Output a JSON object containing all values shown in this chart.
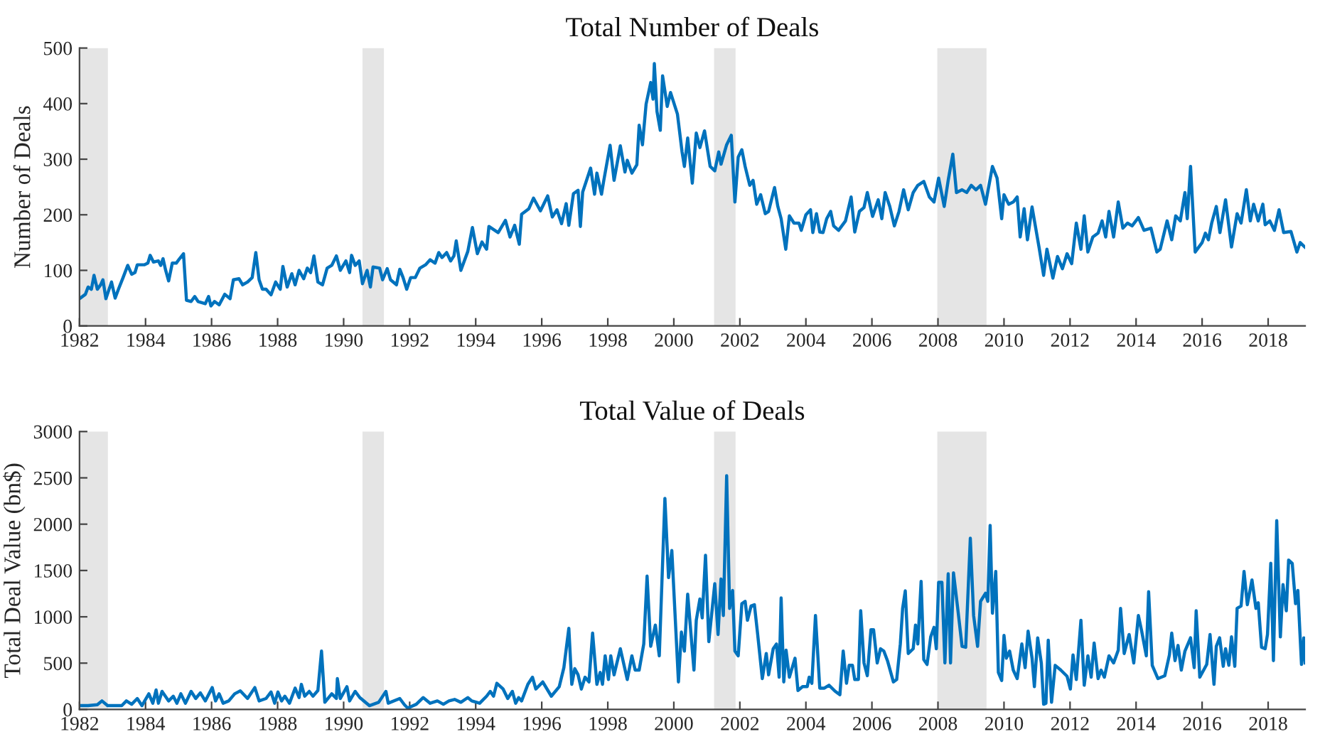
{
  "chart_data": [
    {
      "type": "line",
      "title": "Total Number of Deals",
      "ylabel": "Number of Deals",
      "xlim": [
        1982,
        2019.12
      ],
      "xticks": [
        1982,
        1984,
        1986,
        1988,
        1990,
        1992,
        1994,
        1996,
        1998,
        2000,
        2002,
        2004,
        2006,
        2008,
        2010,
        2012,
        2014,
        2016,
        2018
      ],
      "ylim": [
        0,
        500
      ],
      "yticks": [
        0,
        100,
        200,
        300,
        400,
        500
      ],
      "grid": false,
      "bands": [
        {
          "axis": "x",
          "from": 1982.0,
          "to": 1982.86,
          "color": "#e5e5e5"
        },
        {
          "axis": "x",
          "from": 1990.57,
          "to": 1991.22,
          "color": "#e5e5e5"
        },
        {
          "axis": "x",
          "from": 2001.22,
          "to": 2001.87,
          "color": "#e5e5e5"
        },
        {
          "axis": "x",
          "from": 2007.98,
          "to": 2009.47,
          "color": "#e5e5e5"
        }
      ],
      "series": [
        {
          "color": "#0072bd",
          "x": [
            1982.0,
            1982.18,
            1982.26,
            1982.36,
            1982.44,
            1982.54,
            1982.64,
            1982.71,
            1982.8,
            1982.97,
            1983.08,
            1983.18,
            1983.32,
            1983.46,
            1983.58,
            1983.68,
            1983.75,
            1983.96,
            1984.07,
            1984.14,
            1984.24,
            1984.39,
            1984.46,
            1984.53,
            1984.61,
            1984.7,
            1984.81,
            1984.93,
            1985.03,
            1985.15,
            1985.24,
            1985.38,
            1985.49,
            1985.59,
            1985.81,
            1985.91,
            1985.98,
            1986.09,
            1986.23,
            1986.4,
            1986.56,
            1986.66,
            1986.83,
            1986.94,
            1987.09,
            1987.23,
            1987.34,
            1987.44,
            1987.54,
            1987.65,
            1987.8,
            1987.94,
            1988.08,
            1988.16,
            1988.29,
            1988.43,
            1988.53,
            1988.65,
            1988.79,
            1988.9,
            1989.0,
            1989.1,
            1989.22,
            1989.36,
            1989.5,
            1989.64,
            1989.78,
            1989.9,
            1990.07,
            1990.18,
            1990.24,
            1990.35,
            1990.47,
            1990.57,
            1990.71,
            1990.81,
            1990.89,
            1991.09,
            1991.18,
            1991.32,
            1991.42,
            1991.6,
            1991.7,
            1991.8,
            1991.91,
            1992.03,
            1992.17,
            1992.31,
            1992.48,
            1992.62,
            1992.77,
            1992.88,
            1992.98,
            1993.12,
            1993.24,
            1993.34,
            1993.41,
            1993.55,
            1993.76,
            1993.9,
            1994.05,
            1994.19,
            1994.33,
            1994.4,
            1994.68,
            1994.9,
            1995.04,
            1995.18,
            1995.32,
            1995.39,
            1995.61,
            1995.75,
            1995.96,
            1996.18,
            1996.32,
            1996.46,
            1996.6,
            1996.74,
            1996.82,
            1996.96,
            1997.1,
            1997.17,
            1997.24,
            1997.48,
            1997.6,
            1997.67,
            1997.81,
            1997.88,
            1998.07,
            1998.19,
            1998.38,
            1998.52,
            1998.59,
            1998.73,
            1998.88,
            1998.95,
            1999.05,
            1999.16,
            1999.3,
            1999.37,
            1999.41,
            1999.49,
            1999.59,
            1999.66,
            1999.8,
            1999.9,
            2000.11,
            2000.25,
            2000.32,
            2000.42,
            2000.56,
            2000.68,
            2000.79,
            2000.93,
            2001.1,
            2001.24,
            2001.36,
            2001.43,
            2001.6,
            2001.74,
            2001.85,
            2001.95,
            2002.06,
            2002.16,
            2002.3,
            2002.4,
            2002.51,
            2002.63,
            2002.77,
            2002.87,
            2003.05,
            2003.15,
            2003.25,
            2003.39,
            2003.5,
            2003.64,
            2003.79,
            2003.86,
            2004.0,
            2004.14,
            2004.21,
            2004.32,
            2004.42,
            2004.52,
            2004.63,
            2004.75,
            2004.84,
            2004.99,
            2005.2,
            2005.37,
            2005.48,
            2005.62,
            2005.76,
            2005.86,
            2006.02,
            2006.19,
            2006.3,
            2006.4,
            2006.54,
            2006.68,
            2006.82,
            2006.96,
            2007.1,
            2007.25,
            2007.39,
            2007.57,
            2007.74,
            2007.88,
            2008.02,
            2008.19,
            2008.31,
            2008.45,
            2008.56,
            2008.73,
            2008.87,
            2009.01,
            2009.15,
            2009.29,
            2009.44,
            2009.65,
            2009.79,
            2009.93,
            2010.0,
            2010.14,
            2010.28,
            2010.4,
            2010.49,
            2010.61,
            2010.71,
            2010.85,
            2011.06,
            2011.2,
            2011.3,
            2011.48,
            2011.62,
            2011.77,
            2011.91,
            2012.05,
            2012.19,
            2012.33,
            2012.43,
            2012.54,
            2012.69,
            2012.85,
            2012.97,
            2013.08,
            2013.18,
            2013.32,
            2013.46,
            2013.6,
            2013.74,
            2013.88,
            2014.07,
            2014.24,
            2014.45,
            2014.63,
            2014.73,
            2014.94,
            2015.08,
            2015.2,
            2015.34,
            2015.48,
            2015.55,
            2015.65,
            2015.79,
            2016.0,
            2016.1,
            2016.19,
            2016.29,
            2016.43,
            2016.54,
            2016.71,
            2016.89,
            2017.06,
            2017.18,
            2017.34,
            2017.46,
            2017.56,
            2017.7,
            2017.84,
            2017.91,
            2018.05,
            2018.19,
            2018.33,
            2018.47,
            2018.69,
            2018.87,
            2018.97,
            2019.11
          ],
          "values": [
            49,
            57,
            70,
            66,
            91,
            66,
            74,
            83,
            49,
            79,
            50,
            66,
            87,
            109,
            93,
            96,
            110,
            110,
            113,
            127,
            115,
            117,
            109,
            121,
            100,
            81,
            113,
            113,
            121,
            130,
            46,
            44,
            53,
            44,
            40,
            53,
            36,
            44,
            38,
            57,
            49,
            83,
            85,
            74,
            79,
            87,
            132,
            83,
            66,
            66,
            56,
            79,
            66,
            107,
            70,
            94,
            74,
            100,
            85,
            104,
            96,
            126,
            79,
            74,
            104,
            109,
            126,
            100,
            117,
            96,
            127,
            109,
            117,
            76,
            100,
            70,
            106,
            104,
            83,
            103,
            83,
            74,
            102,
            87,
            66,
            87,
            87,
            104,
            110,
            119,
            113,
            132,
            123,
            132,
            117,
            126,
            153,
            100,
            134,
            177,
            130,
            151,
            138,
            179,
            168,
            190,
            160,
            181,
            147,
            201,
            211,
            230,
            207,
            234,
            196,
            209,
            184,
            220,
            181,
            238,
            244,
            179,
            241,
            284,
            237,
            275,
            237,
            262,
            325,
            262,
            324,
            277,
            298,
            275,
            290,
            361,
            326,
            399,
            438,
            408,
            472,
            386,
            352,
            450,
            395,
            420,
            381,
            313,
            287,
            338,
            257,
            347,
            321,
            351,
            287,
            279,
            313,
            291,
            326,
            343,
            223,
            304,
            317,
            287,
            253,
            262,
            219,
            236,
            202,
            206,
            249,
            215,
            193,
            138,
            198,
            185,
            185,
            172,
            200,
            209,
            168,
            202,
            169,
            168,
            193,
            206,
            180,
            172,
            189,
            232,
            169,
            206,
            213,
            240,
            197,
            227,
            193,
            240,
            215,
            180,
            206,
            245,
            209,
            240,
            253,
            260,
            232,
            223,
            266,
            215,
            262,
            309,
            240,
            245,
            240,
            253,
            245,
            253,
            219,
            287,
            266,
            193,
            236,
            219,
            223,
            232,
            160,
            211,
            155,
            214,
            142,
            91,
            138,
            86,
            125,
            103,
            130,
            112,
            185,
            138,
            198,
            133,
            160,
            167,
            189,
            160,
            206,
            160,
            223,
            176,
            185,
            180,
            195,
            172,
            176,
            133,
            138,
            189,
            155,
            198,
            189,
            240,
            193,
            287,
            133,
            150,
            167,
            155,
            185,
            215,
            168,
            227,
            142,
            202,
            185,
            245,
            189,
            219,
            189,
            219,
            182,
            189,
            172,
            209,
            168,
            170,
            133,
            150,
            142
          ]
        }
      ]
    },
    {
      "type": "line",
      "title": "Total Value of Deals",
      "ylabel": "Total Deal Value (bn$)",
      "xlim": [
        1982,
        2019.12
      ],
      "xticks": [
        1982,
        1984,
        1986,
        1988,
        1990,
        1992,
        1994,
        1996,
        1998,
        2000,
        2002,
        2004,
        2006,
        2008,
        2010,
        2012,
        2014,
        2016,
        2018
      ],
      "ylim": [
        0,
        3000
      ],
      "yticks": [
        0,
        500,
        1000,
        1500,
        2000,
        2500,
        3000
      ],
      "grid": false,
      "bands": [
        {
          "axis": "x",
          "from": 1982.0,
          "to": 1982.86,
          "color": "#e5e5e5"
        },
        {
          "axis": "x",
          "from": 1990.57,
          "to": 1991.22,
          "color": "#e5e5e5"
        },
        {
          "axis": "x",
          "from": 2001.22,
          "to": 2001.87,
          "color": "#e5e5e5"
        },
        {
          "axis": "x",
          "from": 2007.98,
          "to": 2009.47,
          "color": "#e5e5e5"
        }
      ],
      "series": [
        {
          "color": "#0072bd",
          "x": [
            1982.0,
            1982.26,
            1982.54,
            1982.68,
            1982.85,
            1983.28,
            1983.42,
            1983.58,
            1983.75,
            1983.89,
            1984.1,
            1984.22,
            1984.32,
            1984.39,
            1984.5,
            1984.7,
            1984.84,
            1984.95,
            1985.07,
            1985.21,
            1985.38,
            1985.52,
            1985.66,
            1985.81,
            1986.02,
            1986.12,
            1986.23,
            1986.35,
            1986.52,
            1986.7,
            1986.87,
            1987.09,
            1987.31,
            1987.44,
            1987.65,
            1987.8,
            1987.91,
            1988.01,
            1988.12,
            1988.22,
            1988.36,
            1988.53,
            1988.65,
            1988.72,
            1988.82,
            1988.96,
            1989.07,
            1989.22,
            1989.33,
            1989.43,
            1989.64,
            1989.78,
            1989.81,
            1989.9,
            1990.1,
            1990.18,
            1990.35,
            1990.49,
            1990.78,
            1991.06,
            1991.28,
            1991.35,
            1991.7,
            1991.84,
            1991.94,
            1992.2,
            1992.41,
            1992.62,
            1992.84,
            1993.02,
            1993.19,
            1993.36,
            1993.55,
            1993.76,
            1993.88,
            1994.12,
            1994.33,
            1994.44,
            1994.54,
            1994.64,
            1994.83,
            1994.97,
            1995.11,
            1995.21,
            1995.3,
            1995.39,
            1995.58,
            1995.72,
            1995.82,
            1996.03,
            1996.29,
            1996.53,
            1996.67,
            1996.82,
            1996.91,
            1997.0,
            1997.1,
            1997.2,
            1997.31,
            1997.43,
            1997.54,
            1997.67,
            1997.77,
            1997.84,
            1997.92,
            1998.02,
            1998.09,
            1998.19,
            1998.38,
            1998.59,
            1998.73,
            1998.83,
            1998.95,
            1999.09,
            1999.19,
            1999.3,
            1999.44,
            1999.56,
            1999.73,
            1999.84,
            1999.94,
            2000.14,
            2000.23,
            2000.32,
            2000.42,
            2000.61,
            2000.68,
            2000.79,
            2000.86,
            2000.96,
            2001.06,
            2001.24,
            2001.34,
            2001.43,
            2001.5,
            2001.6,
            2001.69,
            2001.78,
            2001.85,
            2001.95,
            2002.06,
            2002.16,
            2002.23,
            2002.34,
            2002.44,
            2002.54,
            2002.68,
            2002.8,
            2002.87,
            2003.01,
            2003.11,
            2003.19,
            2003.25,
            2003.33,
            2003.4,
            2003.5,
            2003.67,
            2003.76,
            2003.9,
            2004.04,
            2004.1,
            2004.18,
            2004.29,
            2004.42,
            2004.56,
            2004.7,
            2004.89,
            2005.03,
            2005.13,
            2005.23,
            2005.31,
            2005.41,
            2005.48,
            2005.59,
            2005.66,
            2005.76,
            2005.86,
            2005.97,
            2006.05,
            2006.16,
            2006.26,
            2006.36,
            2006.47,
            2006.65,
            2006.75,
            2006.86,
            2006.93,
            2007.01,
            2007.1,
            2007.25,
            2007.32,
            2007.39,
            2007.49,
            2007.57,
            2007.67,
            2007.78,
            2007.88,
            2007.95,
            2008.02,
            2008.12,
            2008.21,
            2008.31,
            2008.38,
            2008.47,
            2008.59,
            2008.73,
            2008.84,
            2008.98,
            2009.08,
            2009.2,
            2009.29,
            2009.44,
            2009.51,
            2009.58,
            2009.65,
            2009.75,
            2009.83,
            2009.93,
            2010.0,
            2010.07,
            2010.17,
            2010.28,
            2010.4,
            2010.54,
            2010.64,
            2010.73,
            2010.85,
            2010.92,
            2011.02,
            2011.13,
            2011.2,
            2011.27,
            2011.34,
            2011.44,
            2011.55,
            2011.72,
            2011.91,
            2012.01,
            2012.09,
            2012.19,
            2012.33,
            2012.43,
            2012.54,
            2012.64,
            2012.73,
            2012.85,
            2012.94,
            2013.04,
            2013.18,
            2013.32,
            2013.46,
            2013.53,
            2013.64,
            2013.79,
            2013.93,
            2014.07,
            2014.17,
            2014.31,
            2014.38,
            2014.49,
            2014.66,
            2014.87,
            2015.01,
            2015.08,
            2015.18,
            2015.27,
            2015.37,
            2015.48,
            2015.65,
            2015.76,
            2015.82,
            2015.93,
            2016.14,
            2016.24,
            2016.36,
            2016.43,
            2016.53,
            2016.64,
            2016.71,
            2016.81,
            2016.89,
            2016.99,
            2017.06,
            2017.18,
            2017.27,
            2017.37,
            2017.51,
            2017.63,
            2017.7,
            2017.8,
            2017.91,
            2017.98,
            2018.08,
            2018.16,
            2018.26,
            2018.37,
            2018.45,
            2018.55,
            2018.62,
            2018.73,
            2018.83,
            2018.9,
            2019.01,
            2019.08,
            2019.12
          ],
          "values": [
            41,
            41,
            51,
            92,
            41,
            41,
            92,
            56,
            118,
            41,
            169,
            67,
            210,
            67,
            195,
            92,
            143,
            67,
            169,
            67,
            195,
            118,
            179,
            92,
            236,
            92,
            169,
            67,
            92,
            169,
            200,
            118,
            236,
            92,
            118,
            189,
            67,
            189,
            92,
            143,
            67,
            230,
            128,
            271,
            143,
            195,
            143,
            205,
            630,
            77,
            169,
            118,
            333,
            118,
            246,
            92,
            195,
            128,
            41,
            77,
            195,
            67,
            118,
            51,
            15,
            56,
            128,
            67,
            92,
            56,
            92,
            108,
            77,
            128,
            92,
            67,
            143,
            195,
            143,
            282,
            220,
            118,
            195,
            67,
            128,
            92,
            271,
            348,
            220,
            297,
            143,
            246,
            451,
            876,
            271,
            440,
            374,
            220,
            348,
            297,
            824,
            271,
            399,
            271,
            579,
            323,
            579,
            374,
            655,
            323,
            579,
            425,
            425,
            707,
            1439,
            681,
            911,
            579,
            2278,
            1423,
            1715,
            297,
            835,
            630,
            1244,
            425,
            963,
            1193,
            988,
            1664,
            732,
            1357,
            809,
            1408,
            1014,
            2524,
            1091,
            1285,
            630,
            579,
            1142,
            1167,
            963,
            1116,
            1131,
            809,
            333,
            604,
            374,
            655,
            707,
            348,
            1203,
            297,
            640,
            348,
            553,
            205,
            246,
            246,
            348,
            282,
            1014,
            230,
            230,
            261,
            195,
            159,
            630,
            282,
            476,
            476,
            323,
            323,
            1065,
            502,
            364,
            860,
            860,
            502,
            655,
            630,
            527,
            297,
            323,
            707,
            1091,
            1280,
            604,
            655,
            911,
            707,
            1382,
            538,
            486,
            783,
            886,
            655,
            1372,
            1372,
            502,
            1464,
            502,
            1475,
            1116,
            681,
            671,
            1848,
            1014,
            681,
            1167,
            1254,
            1167,
            1987,
            1039,
            1490,
            399,
            312,
            799,
            553,
            630,
            425,
            333,
            707,
            451,
            845,
            553,
            246,
            773,
            502,
            56,
            67,
            748,
            77,
            476,
            425,
            358,
            220,
            589,
            323,
            963,
            261,
            579,
            348,
            717,
            333,
            425,
            348,
            579,
            502,
            640,
            1091,
            604,
            809,
            502,
            1014,
            845,
            579,
            1270,
            476,
            333,
            364,
            589,
            824,
            527,
            691,
            425,
            630,
            773,
            451,
            1065,
            348,
            486,
            809,
            271,
            681,
            773,
            466,
            655,
            476,
            783,
            466,
            1091,
            1116,
            1490,
            1131,
            1398,
            1091,
            1152,
            671,
            655,
            809,
            1577,
            527,
            2038,
            783,
            1347,
            1065,
            1613,
            1577,
            1142,
            1285,
            486,
            773,
            502
          ]
        }
      ]
    }
  ]
}
